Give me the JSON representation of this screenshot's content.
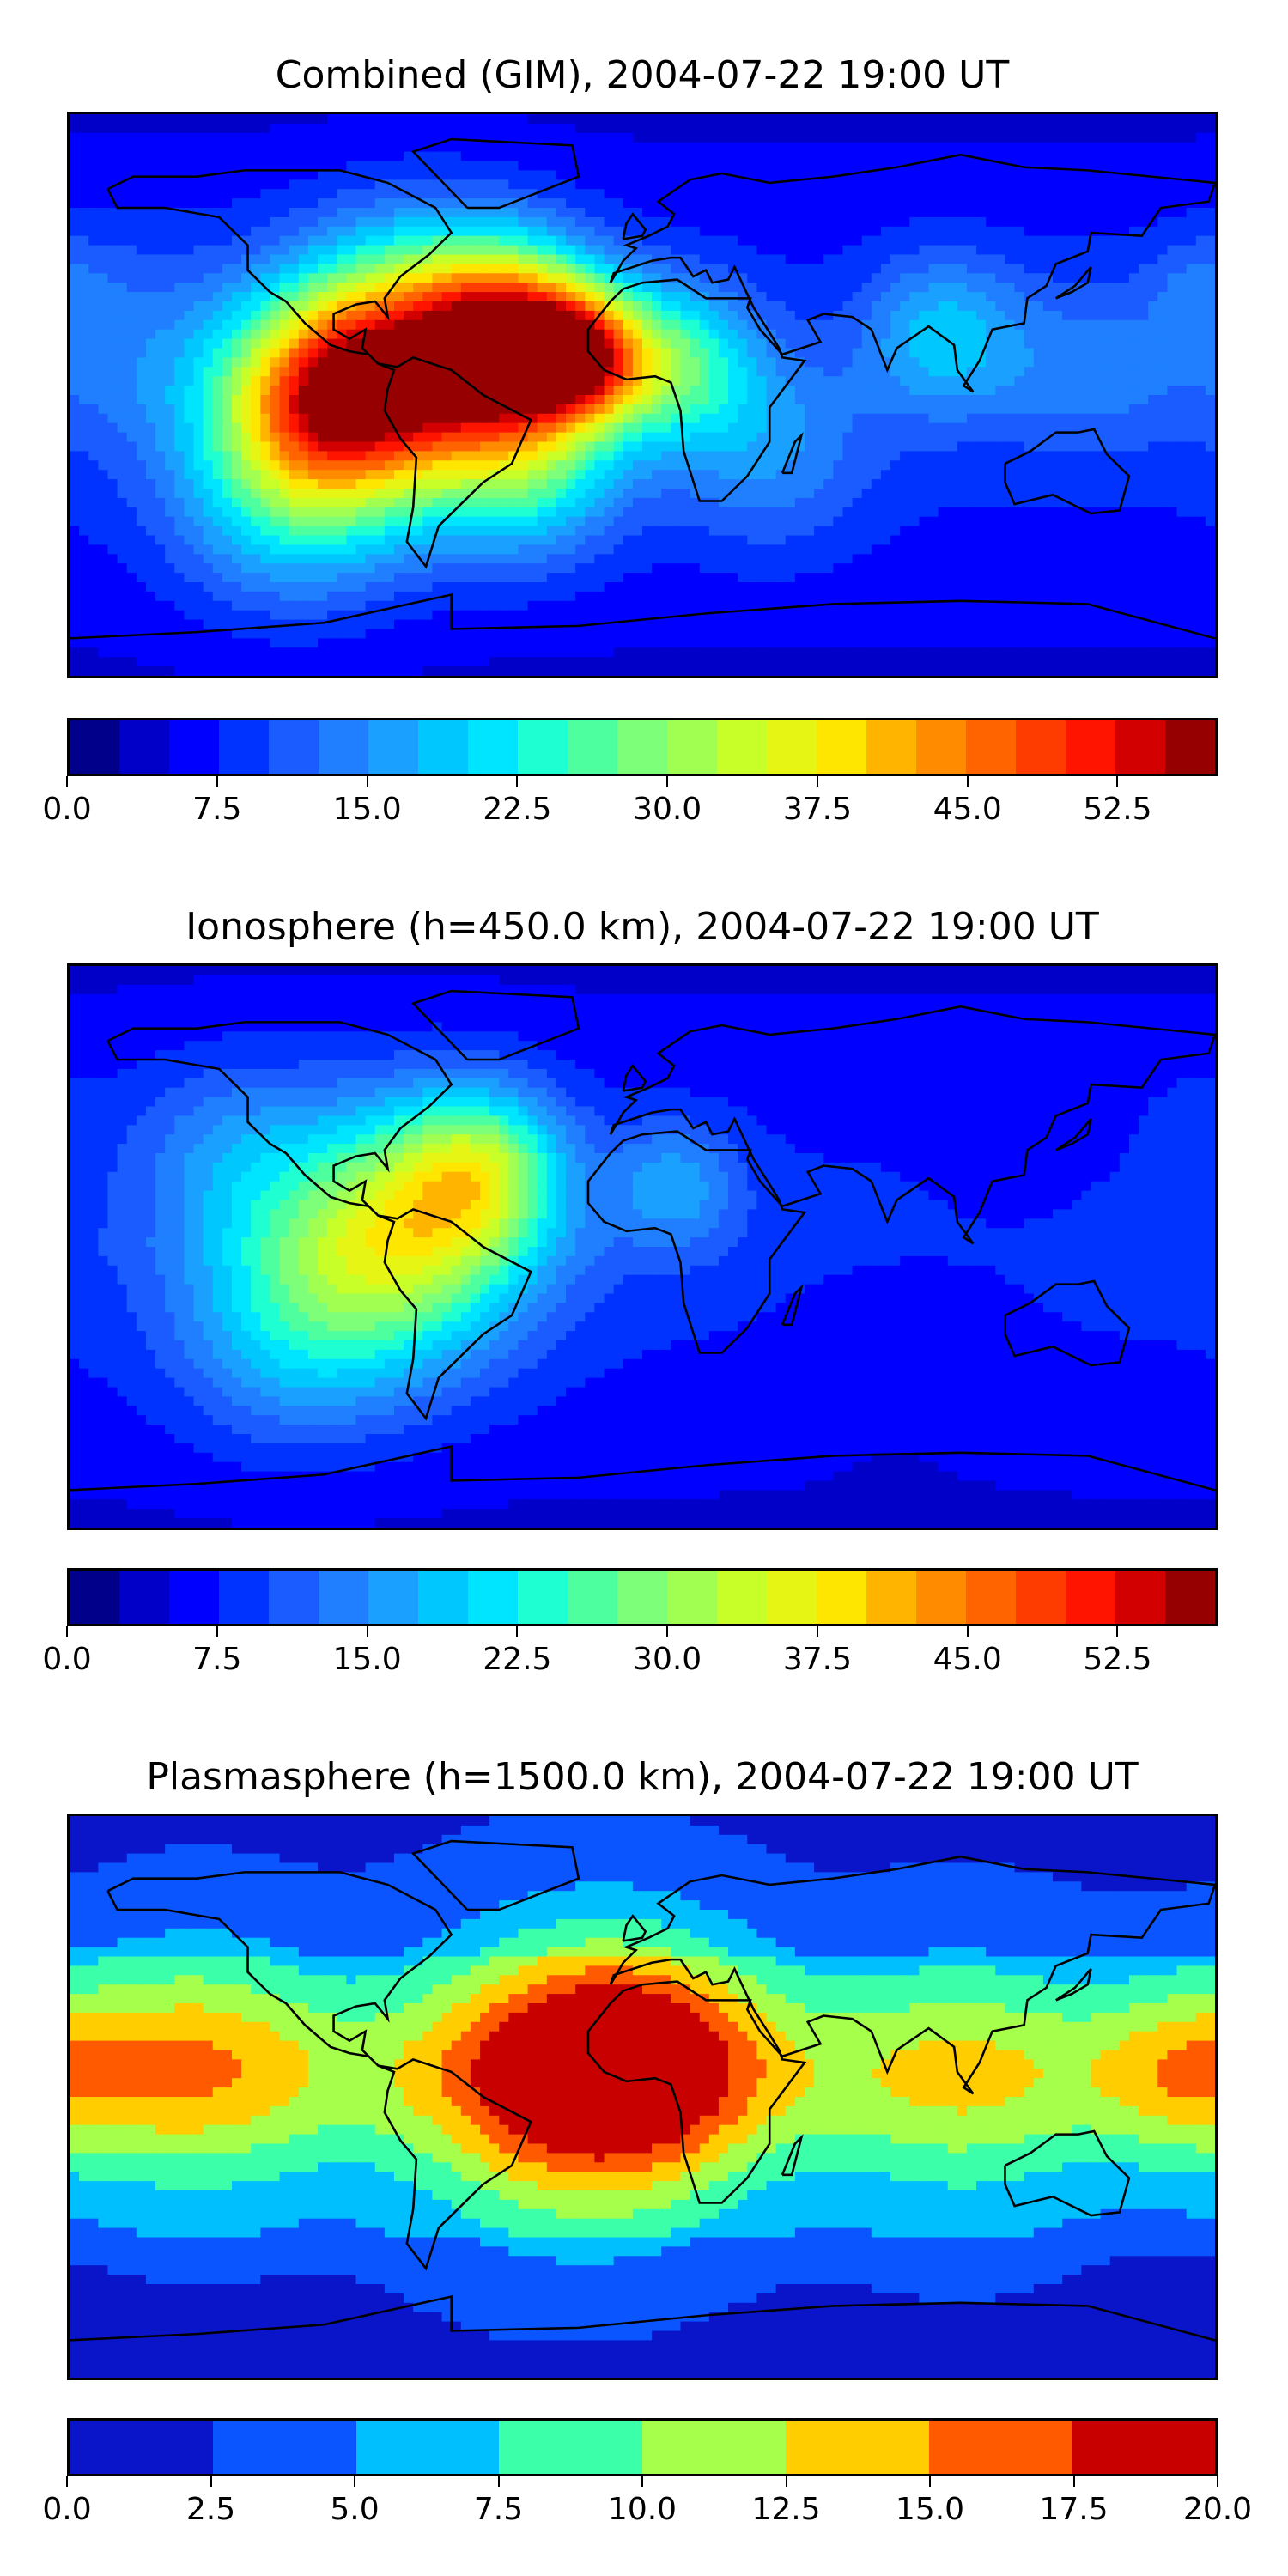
{
  "chart_data": [
    {
      "type": "heatmap",
      "title": "Combined (GIM), 2004-07-22 19:00 UT",
      "colorbar": {
        "min": 0,
        "max": 55,
        "step": 2.5,
        "ticks": [
          0.0,
          7.5,
          15.0,
          22.5,
          30.0,
          37.5,
          45.0,
          52.5
        ],
        "tick_labels": [
          "0.0",
          "7.5",
          "15.0",
          "22.5",
          "30.0",
          "37.5",
          "45.0",
          "52.5"
        ],
        "colors": [
          "#00008b",
          "#0000c8",
          "#0000ff",
          "#0033ff",
          "#1a5cff",
          "#1f7fff",
          "#1aa0ff",
          "#00c8ff",
          "#00e5ff",
          "#1effd2",
          "#4dff9e",
          "#7dff7a",
          "#a0ff50",
          "#c8ff28",
          "#e6f514",
          "#ffe600",
          "#ffb400",
          "#ff8c00",
          "#ff6400",
          "#ff3c00",
          "#ff1400",
          "#d20000",
          "#960000"
        ]
      },
      "features": [
        {
          "lon": -70,
          "lat": 10,
          "value": 46,
          "spread": 28
        },
        {
          "lon": -40,
          "lat": 18,
          "value": 42,
          "spread": 20
        },
        {
          "lon": -20,
          "lat": 12,
          "value": 38,
          "spread": 14
        },
        {
          "lon": -100,
          "lat": 0,
          "value": 34,
          "spread": 22
        },
        {
          "lon": -110,
          "lat": -30,
          "value": 24,
          "spread": 26
        },
        {
          "lon": -35,
          "lat": -25,
          "value": 22,
          "spread": 20
        },
        {
          "lon": 10,
          "lat": 10,
          "value": 26,
          "spread": 18
        },
        {
          "lon": 40,
          "lat": -20,
          "value": 16,
          "spread": 22
        },
        {
          "lon": 95,
          "lat": 20,
          "value": 20,
          "spread": 18
        },
        {
          "lon": 140,
          "lat": 10,
          "value": 14,
          "spread": 20
        },
        {
          "lon": 175,
          "lat": 35,
          "value": 13,
          "spread": 12
        },
        {
          "lon": -160,
          "lat": 20,
          "value": 14,
          "spread": 25
        }
      ],
      "base_value": 9
    },
    {
      "type": "heatmap",
      "title": "Ionosphere  (h=450.0 km), 2004-07-22 19:00 UT",
      "colorbar": {
        "min": 0,
        "max": 55,
        "step": 2.5,
        "ticks": [
          0.0,
          7.5,
          15.0,
          22.5,
          30.0,
          37.5,
          45.0,
          52.5
        ],
        "tick_labels": [
          "0.0",
          "7.5",
          "15.0",
          "22.5",
          "30.0",
          "37.5",
          "45.0",
          "52.5"
        ],
        "colors": [
          "#00008b",
          "#0000c8",
          "#0000ff",
          "#0033ff",
          "#1a5cff",
          "#1f7fff",
          "#1aa0ff",
          "#00c8ff",
          "#00e5ff",
          "#1effd2",
          "#4dff9e",
          "#7dff7a",
          "#a0ff50",
          "#c8ff28",
          "#e6f514",
          "#ffe600",
          "#ffb400",
          "#ff8c00",
          "#ff6400",
          "#ff3c00",
          "#ff1400",
          "#d20000",
          "#960000"
        ]
      },
      "features": [
        {
          "lon": -75,
          "lat": 5,
          "value": 34,
          "spread": 28
        },
        {
          "lon": -50,
          "lat": 25,
          "value": 26,
          "spread": 18
        },
        {
          "lon": -110,
          "lat": -25,
          "value": 20,
          "spread": 26
        },
        {
          "lon": -130,
          "lat": 30,
          "value": 16,
          "spread": 22
        },
        {
          "lon": 10,
          "lat": 20,
          "value": 18,
          "spread": 14
        },
        {
          "lon": 120,
          "lat": 15,
          "value": 8,
          "spread": 20
        },
        {
          "lon": 80,
          "lat": -30,
          "value": 7,
          "spread": 25
        },
        {
          "lon": 175,
          "lat": 40,
          "value": 11,
          "spread": 12
        }
      ],
      "base_value": 9
    },
    {
      "type": "heatmap",
      "title": "Plasmasphere (h=1500.0 km), 2004-07-22 19:00 UT",
      "colorbar": {
        "min": 0,
        "max": 20,
        "step": 2.5,
        "ticks": [
          0.0,
          2.5,
          5.0,
          7.5,
          10.0,
          12.5,
          15.0,
          17.5,
          20.0
        ],
        "tick_labels": [
          "0.0",
          "2.5",
          "5.0",
          "7.5",
          "10.0",
          "12.5",
          "15.0",
          "17.5",
          "20.0"
        ],
        "colors": [
          "#0a14c8",
          "#0a55ff",
          "#00bfff",
          "#3cffaa",
          "#a5ff4b",
          "#ffcd00",
          "#ff5a00",
          "#c80000"
        ]
      },
      "features": [
        {
          "lon": 0,
          "lat": 10,
          "value": 14.5,
          "spread": 30
        },
        {
          "lon": -30,
          "lat": 5,
          "value": 12.5,
          "spread": 34
        },
        {
          "lon": 10,
          "lat": 8,
          "value": 16,
          "spread": 5
        },
        {
          "lon": -140,
          "lat": 10,
          "value": 11,
          "spread": 30
        },
        {
          "lon": 100,
          "lat": 5,
          "value": 9,
          "spread": 32
        },
        {
          "lon": 170,
          "lat": 8,
          "value": 9,
          "spread": 20
        }
      ],
      "base_value": 3.5,
      "latitudinal_band": true
    }
  ]
}
